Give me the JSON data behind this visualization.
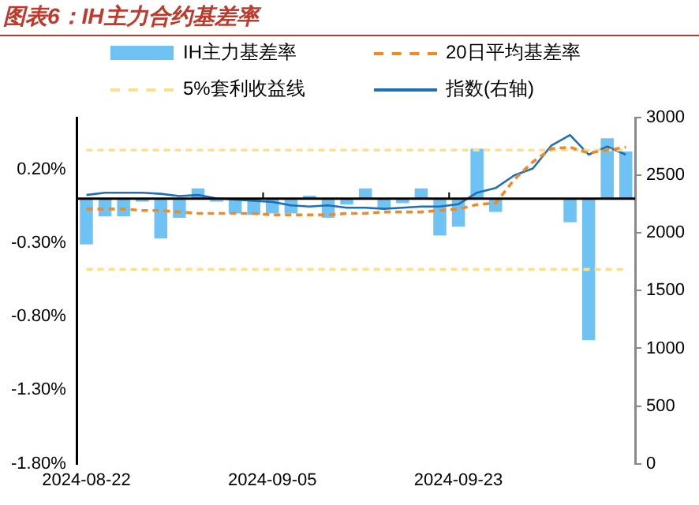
{
  "chart_data": {
    "type": "bar",
    "title": "图表6：IH主力合约基差率",
    "categories": [
      "2024-08-22",
      null,
      null,
      null,
      null,
      null,
      null,
      null,
      null,
      null,
      "2024-09-05",
      null,
      null,
      null,
      null,
      null,
      null,
      null,
      null,
      null,
      "2024-09-23",
      null,
      null,
      null,
      null,
      null,
      null,
      null,
      null,
      null
    ],
    "series": [
      {
        "name": "IH主力基差率",
        "color": "#6ec3f4",
        "values": [
          -0.31,
          -0.12,
          -0.12,
          -0.02,
          -0.27,
          -0.13,
          0.07,
          -0.02,
          -0.1,
          -0.11,
          -0.1,
          -0.1,
          0.02,
          -0.13,
          -0.04,
          0.07,
          -0.07,
          -0.03,
          0.07,
          -0.25,
          -0.19,
          0.34,
          -0.09,
          null,
          null,
          null,
          -0.16,
          -0.96,
          0.41,
          0.32
        ]
      },
      {
        "name": "20日平均基差率",
        "type": "line",
        "line_style": "dashed",
        "color": "#f08a24",
        "values": [
          -0.07,
          -0.07,
          -0.07,
          -0.08,
          -0.08,
          -0.09,
          -0.1,
          -0.1,
          -0.1,
          -0.1,
          -0.11,
          -0.11,
          -0.11,
          -0.11,
          -0.1,
          -0.1,
          -0.09,
          -0.09,
          -0.09,
          -0.08,
          -0.07,
          -0.04,
          -0.03,
          0.13,
          0.25,
          0.34,
          0.35,
          0.31,
          0.33,
          0.35
        ]
      },
      {
        "name": "5%套利收益线",
        "type": "line",
        "line_style": "dashed",
        "color": "#ffe08a",
        "values": [
          0.33,
          0.33,
          0.33,
          0.33,
          0.33,
          0.33,
          0.33,
          0.33,
          0.33,
          0.33,
          0.33,
          0.33,
          0.33,
          0.33,
          0.33,
          0.33,
          0.33,
          0.33,
          0.33,
          0.33,
          0.33,
          0.33,
          0.33,
          0.33,
          0.33,
          0.33,
          0.33,
          0.33,
          0.33,
          0.33
        ]
      },
      {
        "type": "line",
        "line_style": "dashed",
        "color": "#ffe08a",
        "values": [
          -0.48,
          -0.48,
          -0.48,
          -0.48,
          -0.48,
          -0.48,
          -0.48,
          -0.48,
          -0.48,
          -0.48,
          -0.48,
          -0.48,
          -0.48,
          -0.48,
          -0.48,
          -0.48,
          -0.48,
          -0.48,
          -0.48,
          -0.48,
          -0.48,
          -0.48,
          -0.48,
          -0.48,
          -0.48,
          -0.48,
          -0.48,
          -0.48,
          -0.48,
          -0.48
        ]
      },
      {
        "name": "指数(右轴)",
        "type": "line",
        "line_style": "solid",
        "axis": "y2",
        "color": "#1f6fb8",
        "values": [
          2330,
          2350,
          2350,
          2350,
          2340,
          2320,
          2330,
          2300,
          2290,
          2280,
          2270,
          2240,
          2230,
          2240,
          2220,
          2220,
          2210,
          2220,
          2230,
          2230,
          2250,
          2350,
          2390,
          2500,
          2560,
          2760,
          2850,
          2680,
          2750,
          2680
        ]
      }
    ],
    "ylim": [
      -1.8,
      0.55
    ],
    "yticks": [
      {
        "value": 0.2,
        "label": "0.20%"
      },
      {
        "value": -0.3,
        "label": "-0.30%"
      },
      {
        "value": -0.8,
        "label": "-0.80%"
      },
      {
        "value": -1.3,
        "label": "-1.30%"
      },
      {
        "value": -1.8,
        "label": "-1.80%"
      }
    ],
    "y2lim": [
      0,
      3000
    ],
    "y2ticks": [
      0,
      500,
      1000,
      1500,
      2000,
      2500,
      3000
    ],
    "grid": false,
    "legend": "top",
    "marker": "none"
  }
}
